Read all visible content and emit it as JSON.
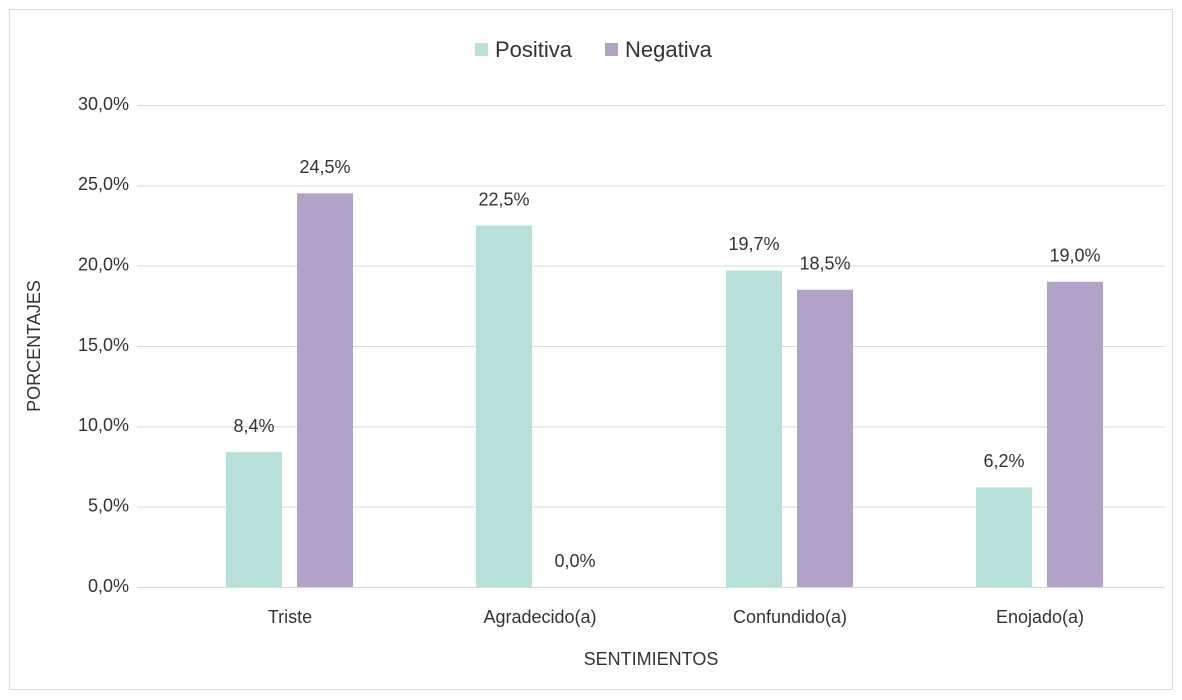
{
  "chart_data": {
    "type": "bar",
    "categories": [
      "Triste",
      "Agradecido(a)",
      "Confundido(a)",
      "Enojado(a)"
    ],
    "series": [
      {
        "name": "Positiva",
        "color": "#b7e0da",
        "values": [
          8.4,
          22.5,
          19.7,
          6.2
        ],
        "value_labels": [
          "8,4%",
          "22,5%",
          "19,7%",
          "6,2%"
        ]
      },
      {
        "name": "Negativa",
        "color": "#b3a2c7",
        "values": [
          24.5,
          0,
          18.5,
          19.0
        ],
        "value_labels": [
          "24,5%",
          "0,0%",
          "18,5%",
          "19,0%"
        ]
      }
    ],
    "xlabel": "SENTIMIENTOS",
    "ylabel": "PORCENTAJES",
    "ylim": [
      0,
      30
    ],
    "yticks": [
      {
        "value": 0,
        "label": "0,0%"
      },
      {
        "value": 5,
        "label": "5,0%"
      },
      {
        "value": 10,
        "label": "10,0%"
      },
      {
        "value": 15,
        "label": "15,0%"
      },
      {
        "value": 20,
        "label": "20,0%"
      },
      {
        "value": 25,
        "label": "25,0%"
      },
      {
        "value": 30,
        "label": "30,0%"
      }
    ],
    "grid": true,
    "legend": "top"
  }
}
